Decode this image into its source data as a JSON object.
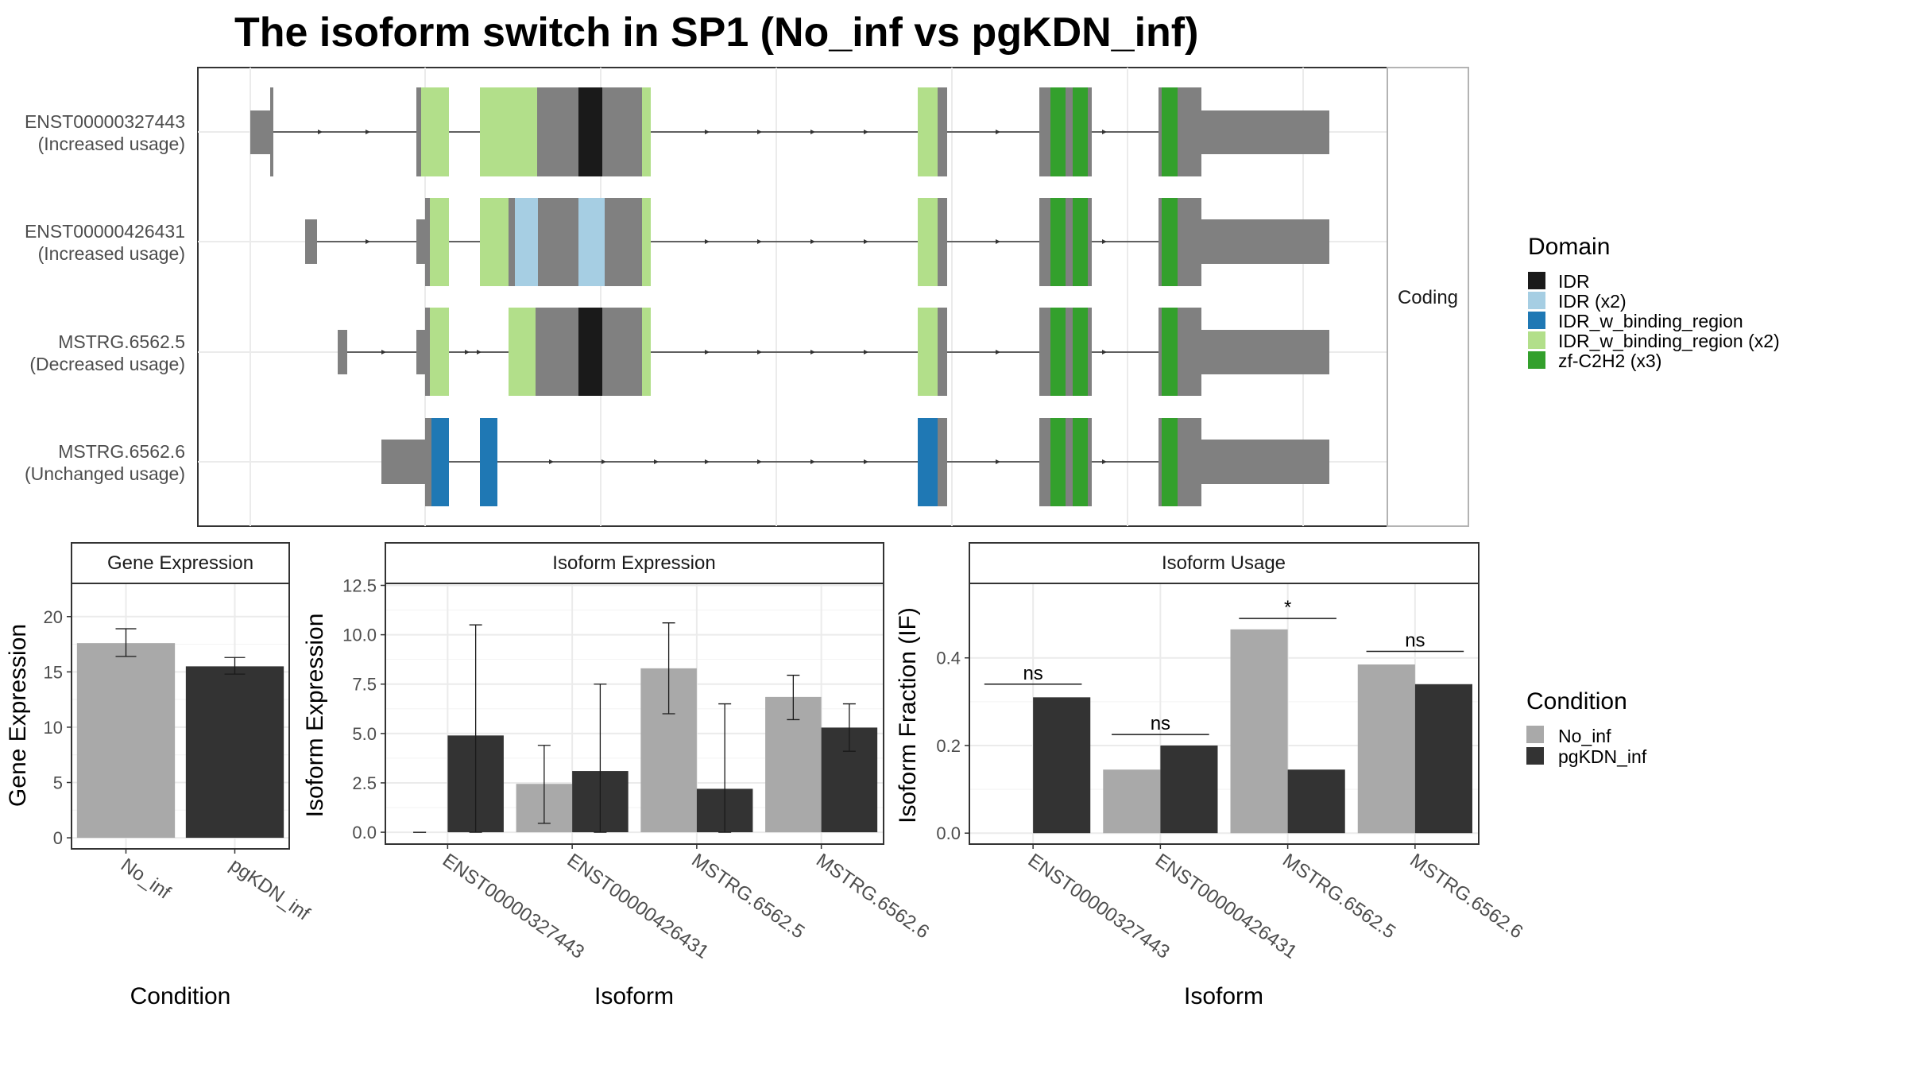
{
  "title": "The isoform switch in SP1 (No_inf vs pgKDN_inf)",
  "structure_panel": {
    "strip_label": "Coding",
    "transcripts": [
      {
        "name": "ENST00000327443",
        "usage": "(Increased usage)"
      },
      {
        "name": "ENST00000426431",
        "usage": "(Increased usage)"
      },
      {
        "name": "MSTRG.6562.5",
        "usage": "(Decreased usage)"
      },
      {
        "name": "MSTRG.6562.6",
        "usage": "(Unchanged usage)"
      }
    ]
  },
  "domain_legend": {
    "title": "Domain",
    "items": [
      {
        "label": "IDR",
        "color": "#1a1a1a"
      },
      {
        "label": "IDR (x2)",
        "color": "#a6cee3"
      },
      {
        "label": "IDR_w_binding_region",
        "color": "#1f78b4"
      },
      {
        "label": "IDR_w_binding_region (x2)",
        "color": "#b2df8a"
      },
      {
        "label": "zf-C2H2 (x3)",
        "color": "#33a02c"
      }
    ]
  },
  "condition_legend": {
    "title": "Condition",
    "items": [
      {
        "label": "No_inf",
        "color": "#a9a9a9"
      },
      {
        "label": "pgKDN_inf",
        "color": "#333333"
      }
    ]
  },
  "chart_data": [
    {
      "type": "bar",
      "title": "Gene Expression",
      "xlabel": "Condition",
      "ylabel": "Gene Expression",
      "categories": [
        "No_inf",
        "pgKDN_inf"
      ],
      "values": [
        17.6,
        15.5
      ],
      "error_low": [
        16.4,
        14.8
      ],
      "error_high": [
        18.9,
        16.3
      ],
      "ylim": [
        -1,
        23
      ],
      "yticks": [
        0,
        5,
        10,
        15,
        20
      ],
      "ytick_labels": [
        "0",
        "5",
        "10",
        "15",
        "20"
      ],
      "colors": [
        "#a9a9a9",
        "#333333"
      ]
    },
    {
      "type": "bar",
      "title": "Isoform Expression",
      "xlabel": "Isoform",
      "ylabel": "Isoform Expression",
      "categories": [
        "ENST00000327443",
        "ENST00000426431",
        "MSTRG.6562.5",
        "MSTRG.6562.6"
      ],
      "series": [
        {
          "name": "No_inf",
          "color": "#a9a9a9",
          "values": [
            0.0,
            2.45,
            8.3,
            6.85
          ],
          "error_low": [
            0.0,
            0.45,
            6.0,
            5.7
          ],
          "error_high": [
            0.0,
            4.4,
            10.6,
            7.95
          ]
        },
        {
          "name": "pgKDN_inf",
          "color": "#333333",
          "values": [
            4.9,
            3.1,
            2.2,
            5.3
          ],
          "error_low": [
            0.0,
            0.0,
            0.0,
            4.1
          ],
          "error_high": [
            10.5,
            7.5,
            6.5,
            6.5
          ]
        }
      ],
      "ylim": [
        -0.6,
        12.6
      ],
      "yticks": [
        0,
        2.5,
        5,
        7.5,
        10,
        12.5
      ],
      "ytick_labels": [
        "0.0",
        "2.5",
        "5.0",
        "7.5",
        "10.0",
        "12.5"
      ]
    },
    {
      "type": "bar",
      "title": "Isoform Usage",
      "xlabel": "Isoform",
      "ylabel": "Isoform Fraction (IF)",
      "categories": [
        "ENST00000327443",
        "ENST00000426431",
        "MSTRG.6562.5",
        "MSTRG.6562.6"
      ],
      "series": [
        {
          "name": "No_inf",
          "color": "#a9a9a9",
          "values": [
            0.0,
            0.145,
            0.465,
            0.385
          ]
        },
        {
          "name": "pgKDN_inf",
          "color": "#333333",
          "values": [
            0.31,
            0.2,
            0.145,
            0.34
          ]
        }
      ],
      "significance": [
        {
          "label": "ns",
          "y": 0.34
        },
        {
          "label": "ns",
          "y": 0.225
        },
        {
          "label": "*",
          "y": 0.49
        },
        {
          "label": "ns",
          "y": 0.415
        }
      ],
      "ylim": [
        -0.025,
        0.57
      ],
      "yticks": [
        0,
        0.2,
        0.4
      ],
      "ytick_labels": [
        "0.0",
        "0.2",
        "0.4"
      ]
    }
  ]
}
